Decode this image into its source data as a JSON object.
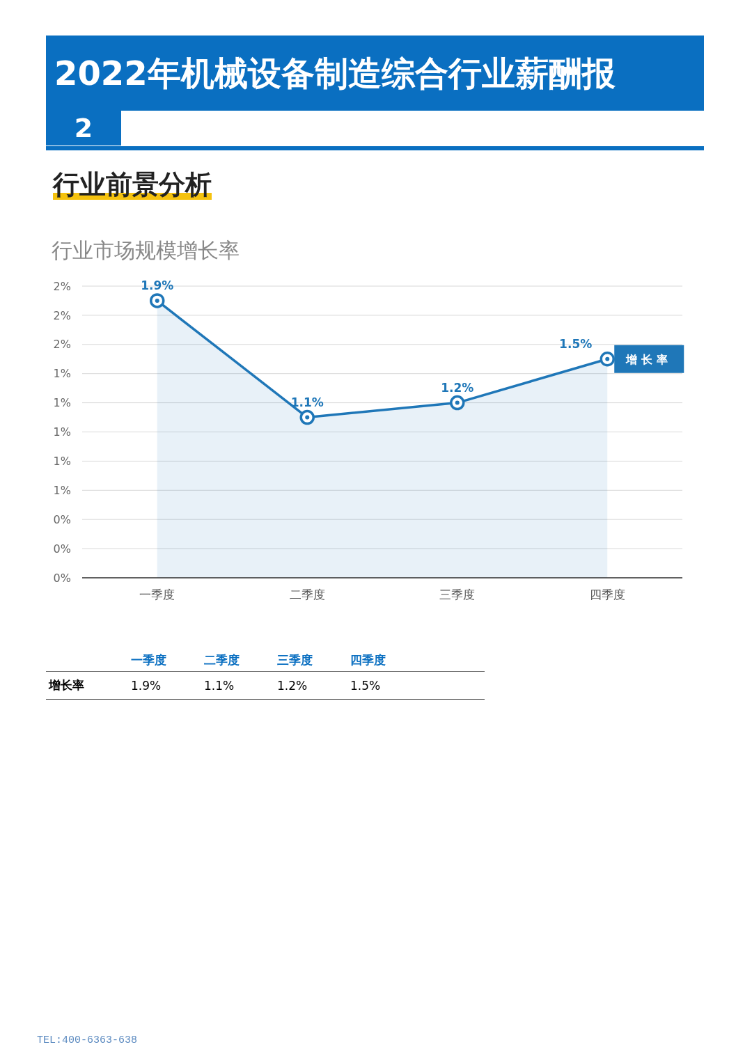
{
  "chart_data": {
    "type": "area",
    "title": "行业市场规模增长率",
    "annotations": [
      "2022年机械设备制造综合行业薪酬报",
      "2",
      "行业前景分析",
      "TEL:400-6363-638"
    ],
    "categories": [
      "一季度",
      "二季度",
      "三季度",
      "四季度"
    ],
    "series": [
      {
        "name": "增长率",
        "color": "#1f77b8",
        "values": [
          1.9,
          1.1,
          1.2,
          1.5
        ],
        "value_labels": [
          "1.9%",
          "1.1%",
          "1.2%",
          "1.5%"
        ]
      }
    ],
    "ylim": [
      0,
      2
    ],
    "yticks": [
      {
        "value": 0,
        "label": "0%"
      },
      {
        "value": 0.2,
        "label": "0%"
      },
      {
        "value": 0.4,
        "label": "0%"
      },
      {
        "value": 0.6,
        "label": "1%"
      },
      {
        "value": 0.8,
        "label": "1%"
      },
      {
        "value": 1,
        "label": "1%"
      },
      {
        "value": 1.2,
        "label": "1%"
      },
      {
        "value": 1.4,
        "label": "1%"
      },
      {
        "value": 1.6,
        "label": "2%"
      },
      {
        "value": 1.8,
        "label": "2%"
      },
      {
        "value": 2,
        "label": "2%"
      }
    ],
    "grid": "y",
    "marker": "circle"
  }
}
